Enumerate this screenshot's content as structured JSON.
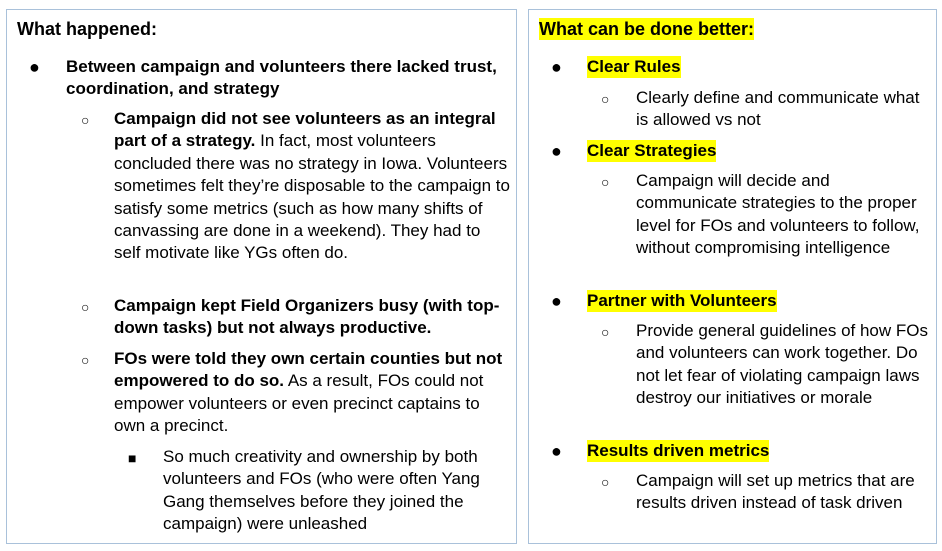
{
  "left": {
    "heading": "What happened:",
    "b1": "Between campaign and volunteers there lacked trust, coordination, and strategy",
    "s1_bold": "Campaign did not see volunteers as an integral part of a strategy.",
    "s1_rest": " In fact, most volunteers concluded there was no strategy in Iowa. Volunteers sometimes felt they’re disposable to the campaign to satisfy some metrics (such as how many shifts of canvassing are done in a weekend). They had to self motivate like YGs often do.",
    "s2_bold": "Campaign kept Field Organizers busy (with top-down tasks) but not always productive.",
    "s3_bold": "FOs were told they own certain counties but not empowered to do so.",
    "s3_rest": "  As a result, FOs could not empower volunteers or even precinct captains to own a precinct.",
    "t1": "So much creativity and ownership by both volunteers and FOs (who were often Yang Gang themselves before they joined the campaign) were unleashed"
  },
  "right": {
    "heading": "What can be done better:",
    "items": [
      {
        "title": "Clear Rules",
        "sub": "Clearly define and communicate what is allowed vs not"
      },
      {
        "title": "Clear Strategies",
        "sub": "Campaign will decide and communicate strategies to the proper level for FOs and volunteers to follow, without compromising intelligence"
      },
      {
        "title": "Partner with Volunteers",
        "sub": "Provide general guidelines of how FOs and volunteers can work together. Do not let fear of violating campaign laws destroy our initiatives or morale"
      },
      {
        "title": "Results driven metrics",
        "sub": "Campaign will set up metrics that are results driven instead of task driven"
      }
    ]
  }
}
